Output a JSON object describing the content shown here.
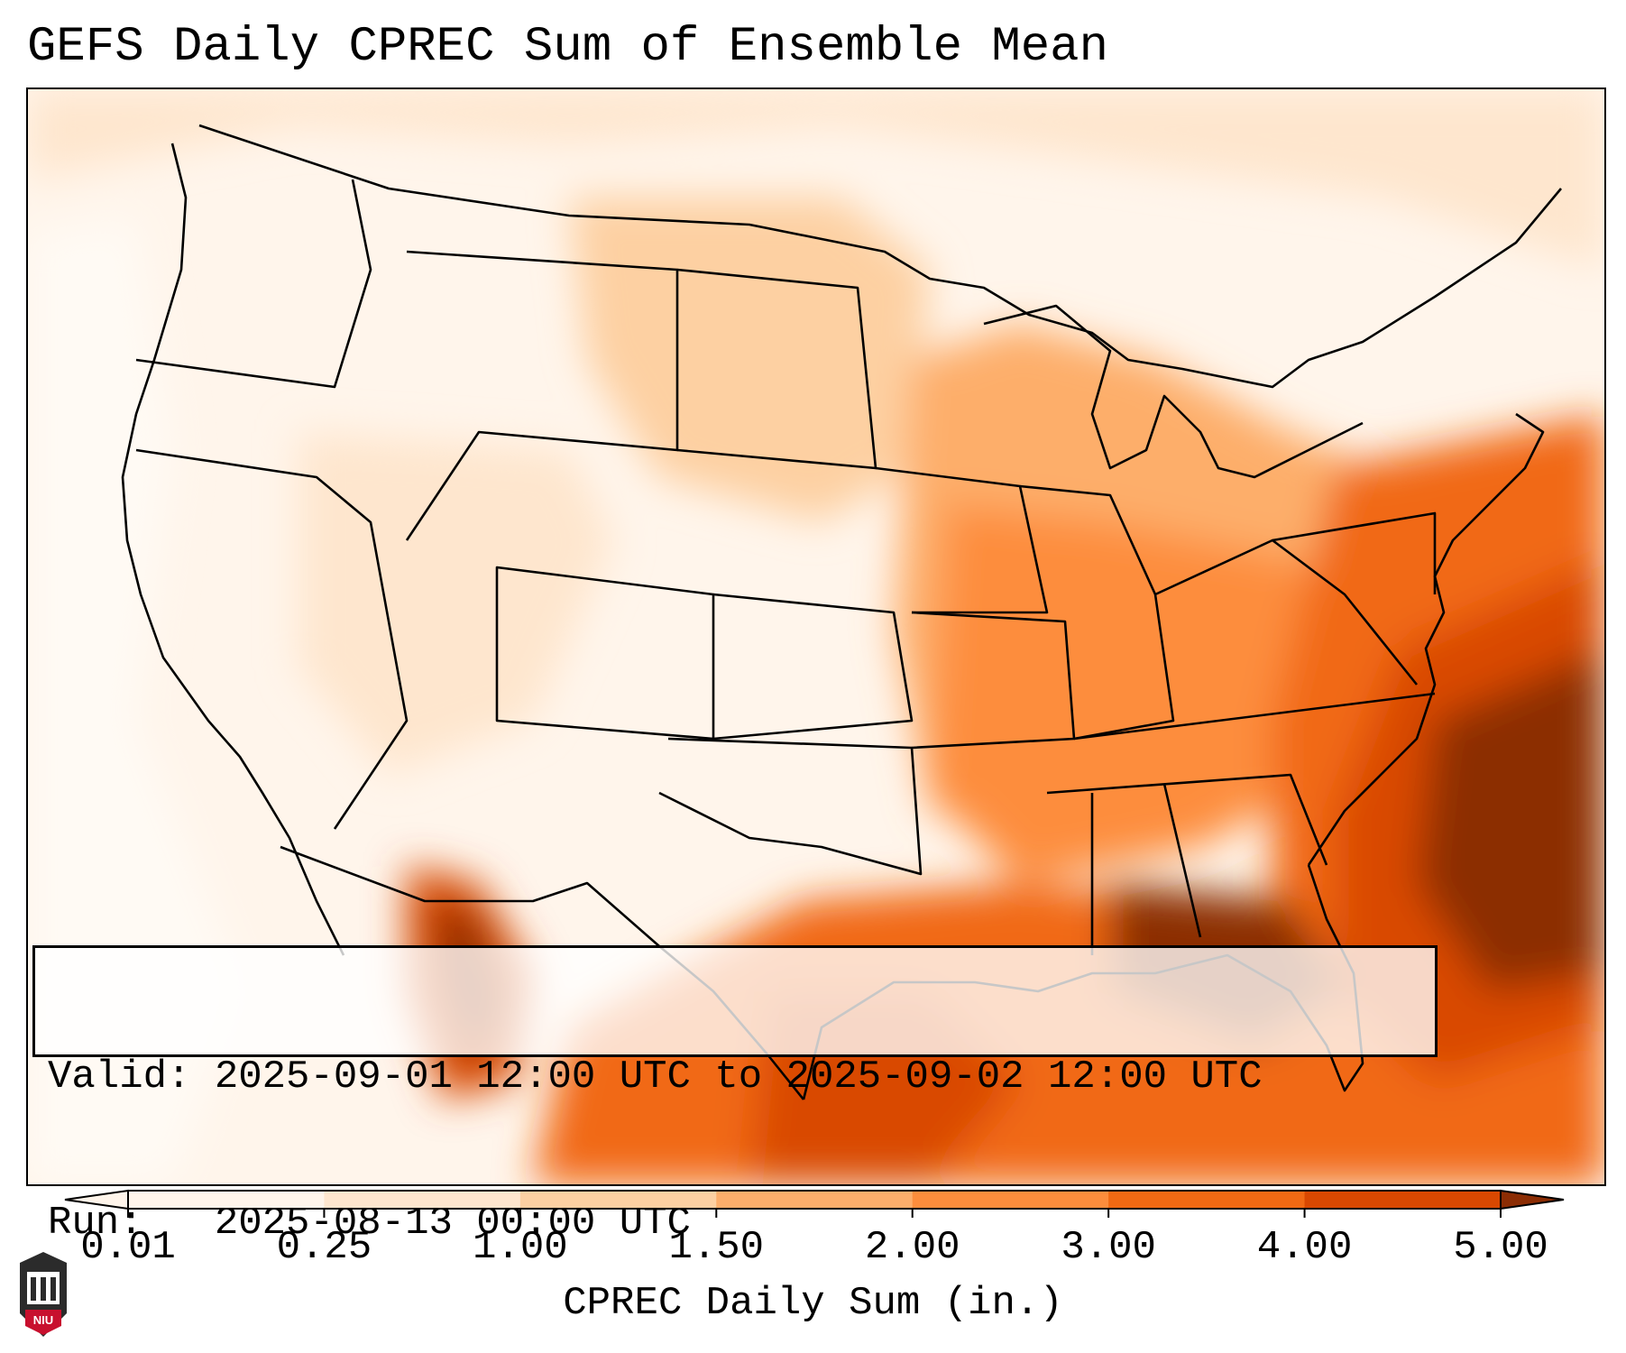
{
  "title": "GEFS Daily CPREC Sum of Ensemble Mean",
  "info": {
    "valid": "Valid: 2025-09-01 12:00 UTC to 2025-09-02 12:00 UTC",
    "run": "Run:   2025-08-13 00:00 UTC"
  },
  "colorbar": {
    "label": "CPREC Daily Sum (in.)",
    "ticks": [
      "0.01",
      "0.25",
      "1.00",
      "1.50",
      "2.00",
      "3.00",
      "4.00",
      "5.00"
    ],
    "colors": [
      "#fff5eb",
      "#fee6ce",
      "#fdd0a2",
      "#fdae6b",
      "#fd8d3c",
      "#f16913",
      "#d94801",
      "#8c2d04"
    ],
    "extend": "both"
  },
  "logo": {
    "text": "NIU"
  }
}
